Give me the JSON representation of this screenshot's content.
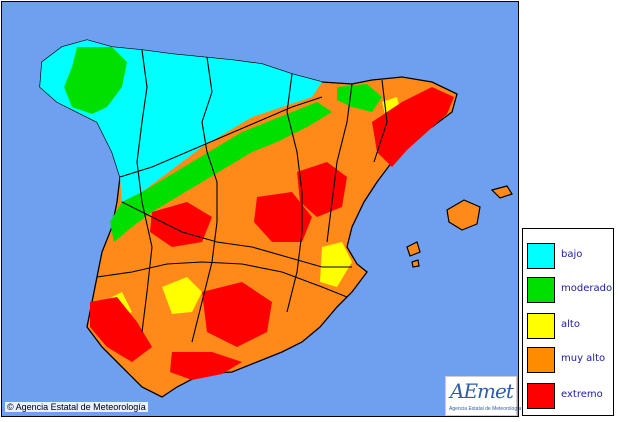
{
  "map": {
    "sea_color": "#6fa0f0",
    "land_base_color": "#ff8a1a",
    "border_color": "#000000"
  },
  "legend": {
    "items": [
      {
        "label": "bajo",
        "color": "#00ffff"
      },
      {
        "label": "moderado",
        "color": "#00e000"
      },
      {
        "label": "alto",
        "color": "#ffff00"
      },
      {
        "label": "muy alto",
        "color": "#ff8c00"
      },
      {
        "label": "extremo",
        "color": "#ff0000"
      }
    ]
  },
  "copyright": "© Agencia Estatal de Meteorología",
  "logo": {
    "main": "AEmet",
    "sub": "Agencia Estatal de Meteorología"
  }
}
